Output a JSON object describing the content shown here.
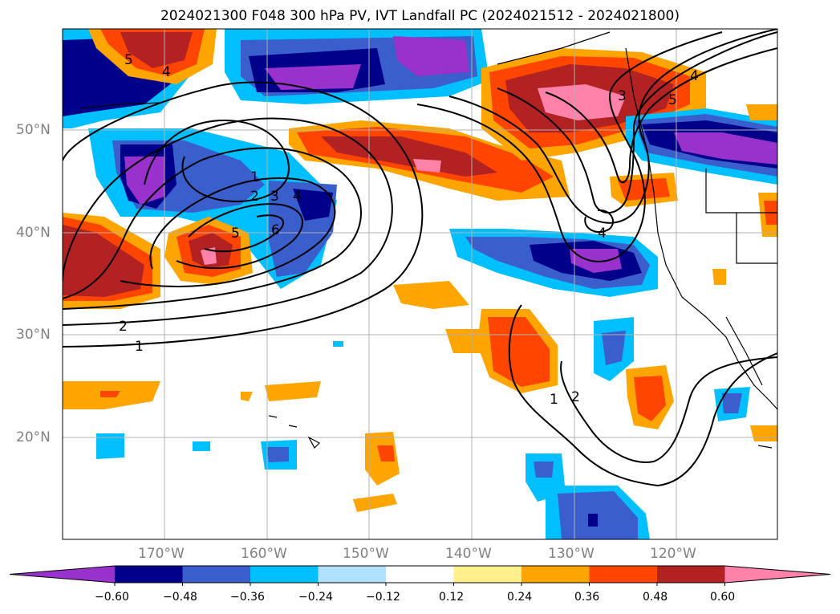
{
  "title": "2024021300 F048 300 hPa PV, IVT Landfall PC (2024021512 - 2024021800)",
  "lat_labels": [
    "50°N",
    "40°N",
    "30°N",
    "20°N"
  ],
  "lon_labels": [
    "170°W",
    "160°W",
    "150°W",
    "140°W",
    "130°W",
    "120°W"
  ],
  "colorbar": {
    "ticks": [
      "−0.60",
      "−0.48",
      "−0.36",
      "−0.24",
      "−0.12",
      "0.12",
      "0.24",
      "0.36",
      "0.48",
      "0.60"
    ],
    "colors": [
      "#9932cc",
      "#00008b",
      "#3a5fcd",
      "#00bfff",
      "#b0e2ff",
      "#ffffff",
      "#fff08c",
      "#ffa500",
      "#ff4500",
      "#b22222",
      "#ff82ab"
    ]
  },
  "contour_labels": [
    "5",
    "2",
    "3",
    "4",
    "1",
    "6",
    "5",
    "4",
    "2",
    "1",
    "4",
    "4",
    "5",
    "3",
    "2",
    "1"
  ],
  "colors": {
    "lines": "#000000",
    "grid": "#b0b0b0",
    "axis_text": "#808080"
  }
}
